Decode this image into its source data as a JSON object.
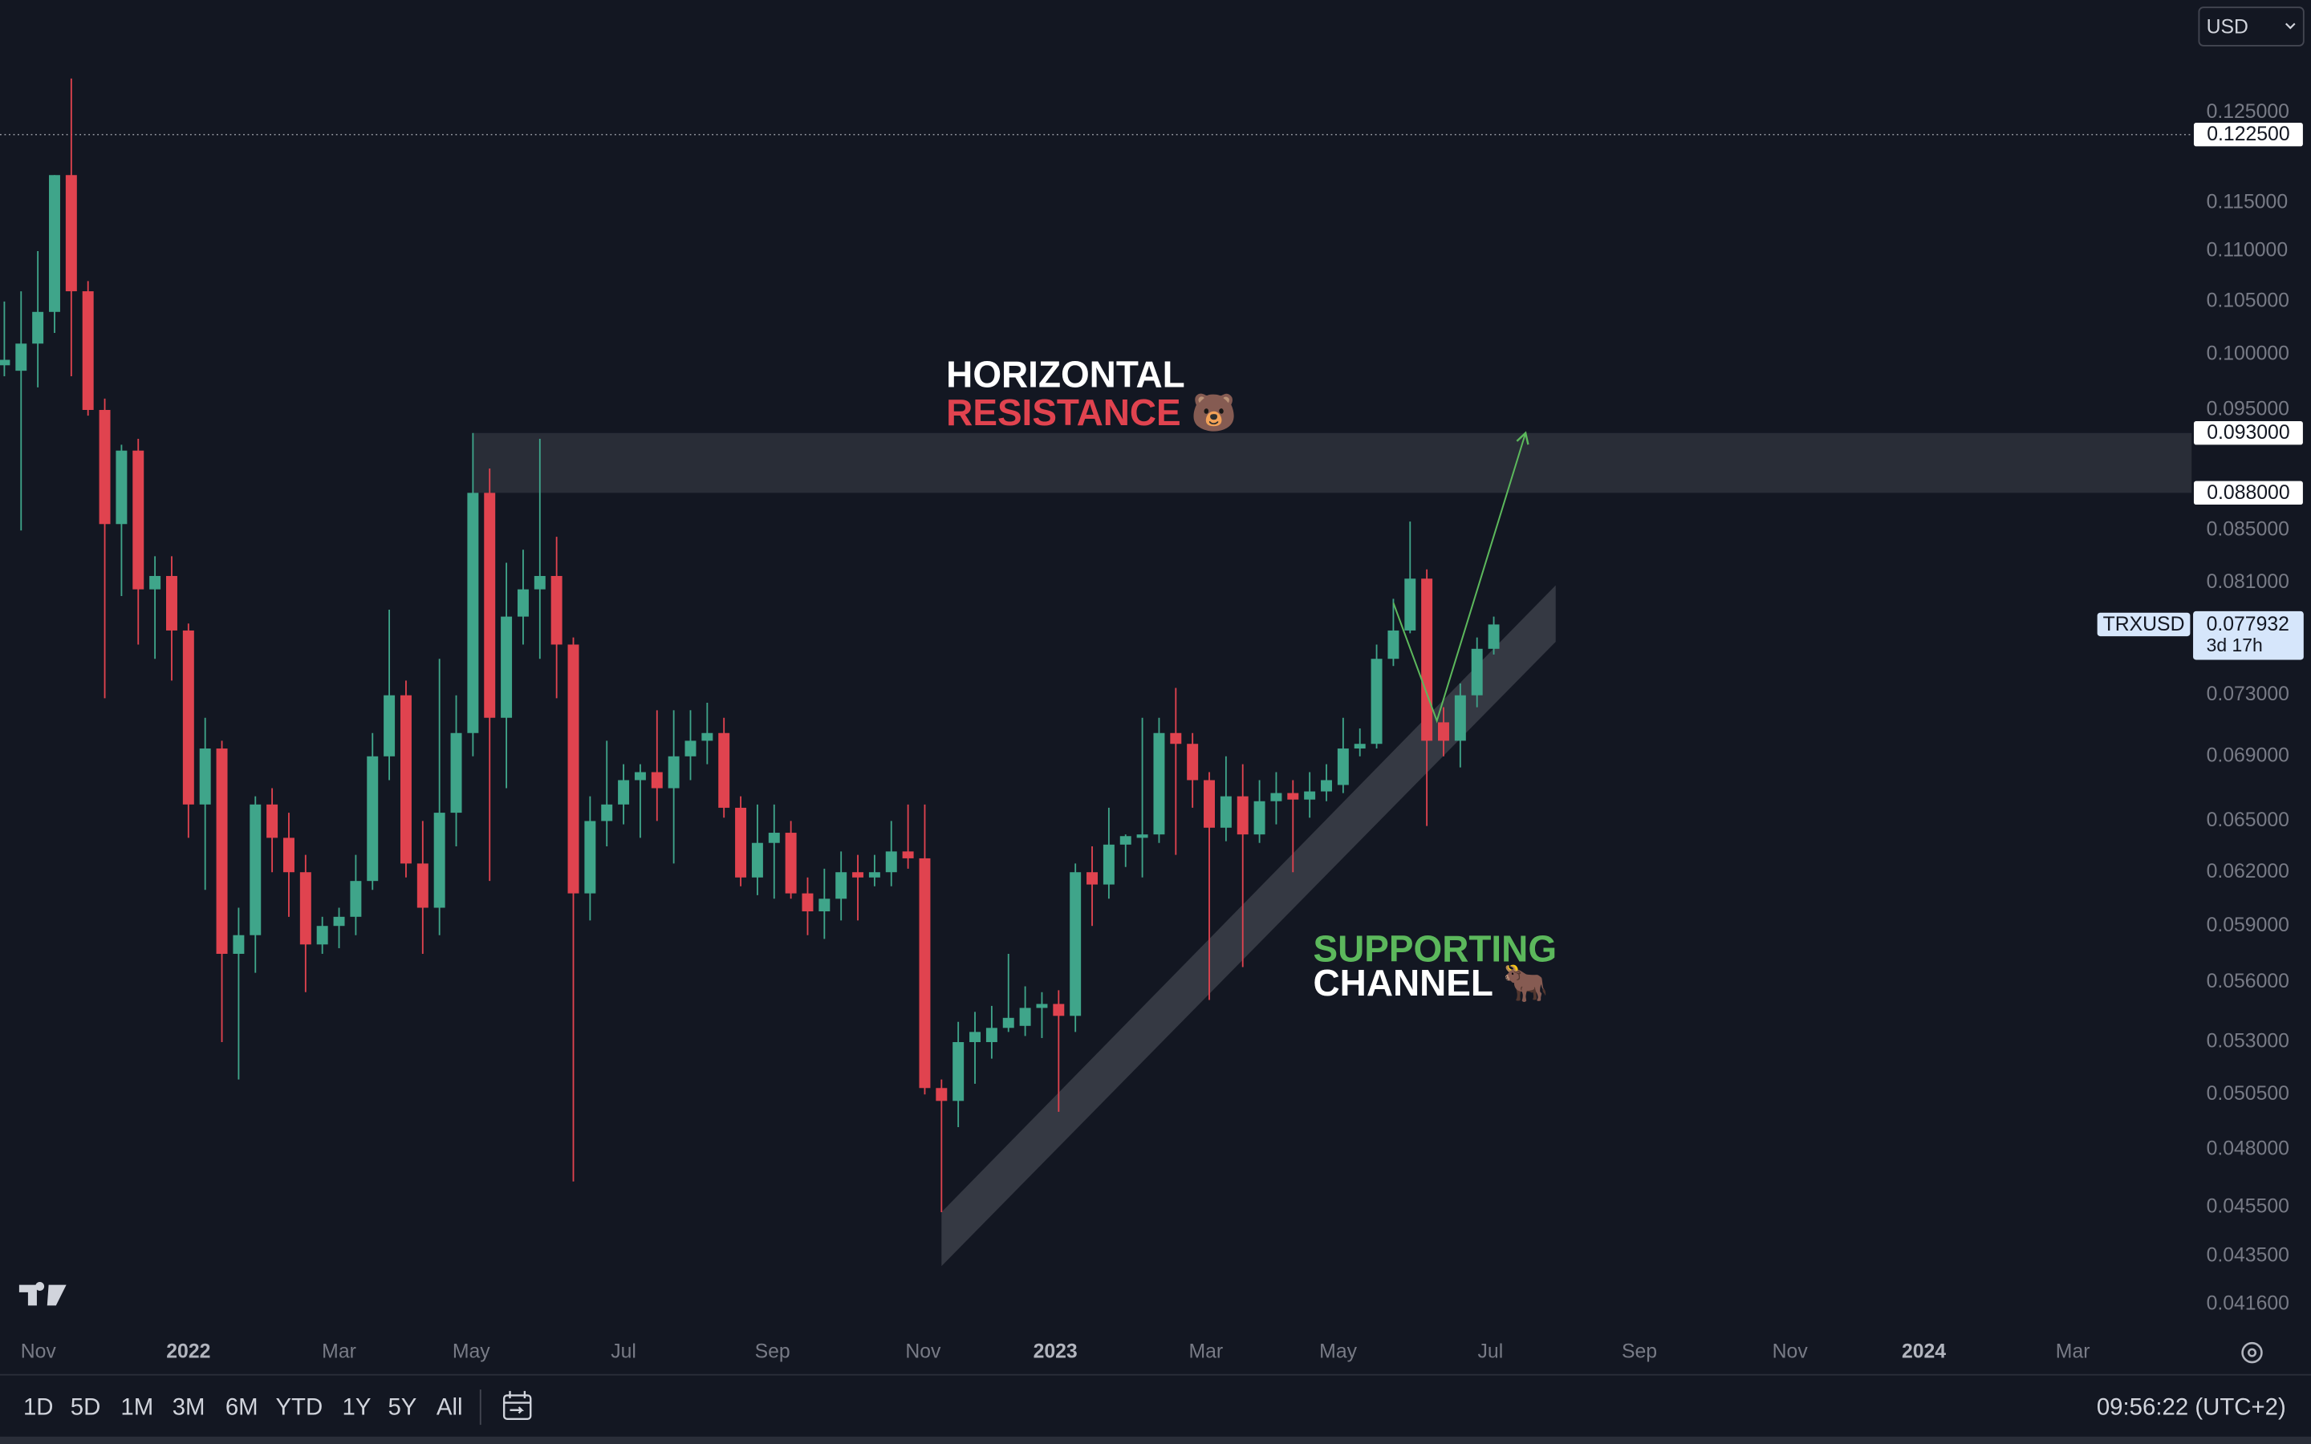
{
  "chart_data": {
    "type": "candlestick",
    "symbol": "TRXUSD",
    "currency": "USD",
    "log_scale": true,
    "up_color": "#3fa58a",
    "down_color": "#e0434f",
    "open": [
      0.099,
      0.0985,
      0.101,
      0.104,
      0.118,
      0.106,
      0.095,
      0.0855,
      0.0915,
      0.0805,
      0.0815,
      0.0775,
      0.066,
      0.0695,
      0.0575,
      0.0585,
      0.066,
      0.064,
      0.062,
      0.058,
      0.059,
      0.0595,
      0.0615,
      0.069,
      0.073,
      0.0625,
      0.06,
      0.0655,
      0.0705,
      0.088,
      0.0715,
      0.0785,
      0.0805,
      0.0815,
      0.0765,
      0.0608,
      0.065,
      0.066,
      0.0675,
      0.068,
      0.067,
      0.069,
      0.07,
      0.0705,
      0.0658,
      0.0617,
      0.0637,
      0.0643,
      0.0608,
      0.0598,
      0.0605,
      0.062,
      0.0617,
      0.062,
      0.0632,
      0.0628,
      0.0508,
      0.0502,
      0.053,
      0.053,
      0.0537,
      0.0538,
      0.0547,
      0.0549,
      0.0543,
      0.062,
      0.0613,
      0.0636,
      0.064,
      0.0642,
      0.0705,
      0.0698,
      0.0675,
      0.0646,
      0.0665,
      0.0642,
      0.0662,
      0.0667,
      0.0663,
      0.0668,
      0.0672,
      0.0695,
      0.0698,
      0.0755,
      0.0775,
      0.0813,
      0.0712,
      0.07,
      0.073,
      0.0762
    ],
    "high": [
      0.105,
      0.106,
      0.11,
      0.118,
      0.129,
      0.107,
      0.096,
      0.092,
      0.0925,
      0.083,
      0.083,
      0.078,
      0.0715,
      0.07,
      0.06,
      0.0665,
      0.067,
      0.0655,
      0.063,
      0.0595,
      0.06,
      0.063,
      0.0705,
      0.079,
      0.074,
      0.065,
      0.0755,
      0.073,
      0.093,
      0.09,
      0.0825,
      0.0835,
      0.0925,
      0.0845,
      0.077,
      0.0665,
      0.07,
      0.0685,
      0.0685,
      0.072,
      0.072,
      0.072,
      0.0725,
      0.0715,
      0.0665,
      0.066,
      0.066,
      0.065,
      0.0617,
      0.0622,
      0.0632,
      0.063,
      0.063,
      0.065,
      0.066,
      0.066,
      0.0512,
      0.054,
      0.0545,
      0.0548,
      0.0575,
      0.0558,
      0.0555,
      0.0556,
      0.0625,
      0.0635,
      0.0658,
      0.0642,
      0.0715,
      0.0715,
      0.0735,
      0.0705,
      0.068,
      0.069,
      0.0685,
      0.0675,
      0.068,
      0.0675,
      0.068,
      0.0685,
      0.0715,
      0.0708,
      0.0765,
      0.0798,
      0.0857,
      0.082,
      0.0722,
      0.0738,
      0.077,
      0.0785
    ],
    "low": [
      0.098,
      0.085,
      0.097,
      0.102,
      0.098,
      0.0945,
      0.0728,
      0.08,
      0.0765,
      0.0755,
      0.074,
      0.064,
      0.061,
      0.053,
      0.0512,
      0.0565,
      0.062,
      0.0595,
      0.0555,
      0.0575,
      0.0578,
      0.0585,
      0.061,
      0.0675,
      0.0617,
      0.0575,
      0.0585,
      0.0635,
      0.069,
      0.0615,
      0.067,
      0.0765,
      0.0755,
      0.0728,
      0.0466,
      0.0593,
      0.0635,
      0.0648,
      0.064,
      0.065,
      0.0625,
      0.0675,
      0.0685,
      0.0652,
      0.0612,
      0.0607,
      0.0605,
      0.0605,
      0.0585,
      0.0583,
      0.0593,
      0.0593,
      0.0612,
      0.0612,
      0.0622,
      0.0505,
      0.0453,
      0.049,
      0.051,
      0.0522,
      0.0535,
      0.0533,
      0.0532,
      0.0497,
      0.0535,
      0.059,
      0.0605,
      0.0623,
      0.0617,
      0.0637,
      0.063,
      0.0658,
      0.0551,
      0.0638,
      0.0568,
      0.0637,
      0.0648,
      0.062,
      0.0652,
      0.0662,
      0.0667,
      0.069,
      0.0695,
      0.075,
      0.0773,
      0.0647,
      0.069,
      0.0683,
      0.0722,
      0.0758
    ],
    "close": [
      0.0995,
      0.101,
      0.104,
      0.118,
      0.106,
      0.095,
      0.0855,
      0.0915,
      0.0805,
      0.0815,
      0.0775,
      0.066,
      0.0695,
      0.0575,
      0.0585,
      0.066,
      0.064,
      0.062,
      0.058,
      0.059,
      0.0595,
      0.0615,
      0.069,
      0.073,
      0.0625,
      0.06,
      0.0655,
      0.0705,
      0.088,
      0.0715,
      0.0785,
      0.0805,
      0.0815,
      0.0765,
      0.0608,
      0.065,
      0.066,
      0.0675,
      0.068,
      0.067,
      0.069,
      0.07,
      0.0705,
      0.0658,
      0.0617,
      0.0637,
      0.0643,
      0.0608,
      0.0598,
      0.0605,
      0.062,
      0.0617,
      0.062,
      0.0632,
      0.0628,
      0.0508,
      0.0502,
      0.053,
      0.0535,
      0.0537,
      0.0542,
      0.0547,
      0.0549,
      0.0543,
      0.062,
      0.0613,
      0.0636,
      0.0641,
      0.0642,
      0.0705,
      0.0698,
      0.0675,
      0.0646,
      0.0665,
      0.0642,
      0.0662,
      0.0667,
      0.0663,
      0.0668,
      0.0675,
      0.0695,
      0.0698,
      0.0755,
      0.0775,
      0.0813,
      0.07,
      0.07,
      0.073,
      0.0762,
      0.077932
    ],
    "last_price": 0.077932,
    "countdown": "3d 17h",
    "xlim": [
      -0.26,
      130.7
    ],
    "ylim": [
      0.0405,
      0.1387
    ],
    "xticks": [
      {
        "value": 2.03,
        "label": "Nov"
      },
      {
        "value": 11.0,
        "label": "2022"
      },
      {
        "value": 20.0,
        "label": "Mar"
      },
      {
        "value": 27.9,
        "label": "May"
      },
      {
        "value": 37.0,
        "label": "Jul"
      },
      {
        "value": 45.9,
        "label": "Sep"
      },
      {
        "value": 54.9,
        "label": "Nov"
      },
      {
        "value": 62.8,
        "label": "2023"
      },
      {
        "value": 71.8,
        "label": "Mar"
      },
      {
        "value": 79.7,
        "label": "May"
      },
      {
        "value": 88.8,
        "label": "Jul"
      },
      {
        "value": 97.7,
        "label": "Sep"
      },
      {
        "value": 106.7,
        "label": "Nov"
      },
      {
        "value": 114.7,
        "label": "2024"
      },
      {
        "value": 123.6,
        "label": "Mar"
      }
    ],
    "yticks": [
      {
        "value": 0.125,
        "label": "0.125000"
      },
      {
        "value": 0.115,
        "label": "0.115000"
      },
      {
        "value": 0.11,
        "label": "0.110000"
      },
      {
        "value": 0.105,
        "label": "0.105000"
      },
      {
        "value": 0.1,
        "label": "0.100000"
      },
      {
        "value": 0.095,
        "label": "0.095000"
      },
      {
        "value": 0.085,
        "label": "0.085000"
      },
      {
        "value": 0.081,
        "label": "0.081000"
      },
      {
        "value": 0.073,
        "label": "0.073000"
      },
      {
        "value": 0.069,
        "label": "0.069000"
      },
      {
        "value": 0.065,
        "label": "0.065000"
      },
      {
        "value": 0.062,
        "label": "0.062000"
      },
      {
        "value": 0.059,
        "label": "0.059000"
      },
      {
        "value": 0.056,
        "label": "0.056000"
      },
      {
        "value": 0.053,
        "label": "0.053000"
      },
      {
        "value": 0.0505,
        "label": "0.050500"
      },
      {
        "value": 0.048,
        "label": "0.048000"
      },
      {
        "value": 0.0455,
        "label": "0.045500"
      },
      {
        "value": 0.0435,
        "label": "0.043500"
      },
      {
        "value": 0.0416,
        "label": "0.041600"
      }
    ],
    "price_line": {
      "value": 0.1225,
      "label": "0.122500"
    },
    "resistance_zone": {
      "x_start": 28,
      "top": {
        "value": 0.093,
        "label": "0.093000"
      },
      "bottom": {
        "value": 0.088,
        "label": "0.088000"
      }
    },
    "channel": {
      "x": [
        56,
        92.7
      ],
      "upper": [
        0.0453,
        0.0808
      ],
      "lower": [
        0.0431,
        0.0767
      ]
    },
    "arrow": {
      "x": [
        83,
        85.6,
        90.9
      ],
      "y": [
        0.0795,
        0.0713,
        0.093
      ]
    },
    "resistance_label": [
      "HORIZONTAL",
      "RESISTANCE 🐻"
    ],
    "channel_label": [
      "SUPPORTING",
      "CHANNEL 🐂"
    ]
  },
  "toolbar": {
    "ranges": [
      "1D",
      "5D",
      "1M",
      "3M",
      "6M",
      "YTD",
      "1Y",
      "5Y",
      "All"
    ],
    "clock": "09:56:22 (UTC+2)"
  }
}
